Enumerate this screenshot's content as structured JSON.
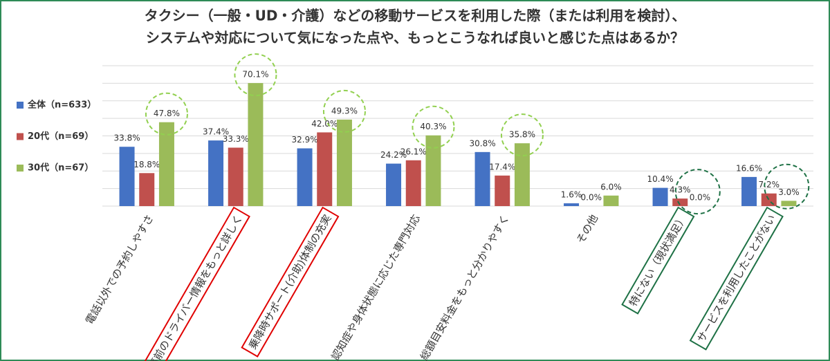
{
  "chart_data": {
    "type": "bar",
    "title": [
      "タクシー（一般・UD・介護）などの移動サービスを利用した際（または利用を検討）、",
      "システムや対応について気になった点や、もっとこうなれば良いと感じた点はあるか？"
    ],
    "categories": [
      "電話以外での予約しやすさ",
      "事前のドライバー情報をもっと詳しく",
      "乗降時サポート(介助)体制の充実",
      "認知症や身体状態に応じた専門対応",
      "総額目安料金をもっと分かりやすく",
      "その他",
      "特にない（現状満足）",
      "サービスを利用したことがない"
    ],
    "series": [
      {
        "name": "全体（n=633）",
        "color": "#4472c4",
        "values": [
          33.8,
          37.4,
          32.9,
          24.2,
          30.8,
          1.6,
          10.4,
          16.6
        ],
        "value_labels": [
          "33.8%",
          "37.4%",
          "32.9%",
          "24.2%",
          "30.8%",
          "1.6%",
          "10.4%",
          "16.6%"
        ]
      },
      {
        "name": "20代（n=69）",
        "color": "#c0504d",
        "values": [
          18.8,
          33.3,
          42.0,
          26.1,
          17.4,
          0.0,
          4.3,
          7.2
        ],
        "value_labels": [
          "18.8%",
          "33.3%",
          "42.0%",
          "26.1%",
          "17.4%",
          "0.0%",
          "4.3%",
          "7.2%"
        ]
      },
      {
        "name": "30代（n=67）",
        "color": "#9bbb59",
        "values": [
          47.8,
          70.1,
          49.3,
          40.3,
          35.8,
          6.0,
          0.0,
          3.0
        ],
        "value_labels": [
          "47.8%",
          "70.1%",
          "49.3%",
          "40.3%",
          "35.8%",
          "6.0%",
          "0.0%",
          "3.0%"
        ]
      }
    ],
    "ylim": [
      0,
      80
    ],
    "yticks": [
      0,
      10,
      20,
      30,
      40,
      50,
      60,
      70,
      80
    ],
    "grid": true,
    "legend": "left"
  }
}
